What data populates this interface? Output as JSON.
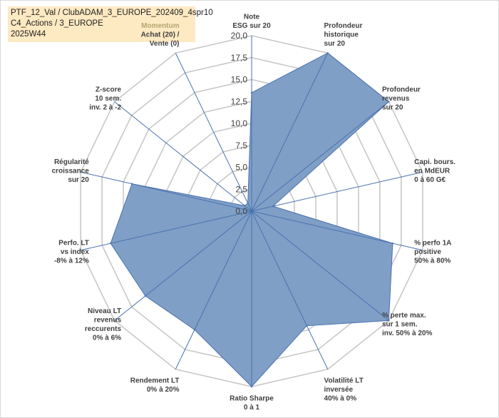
{
  "title_lines": [
    "PTF_12_Val / ClubADAM_3_EUROPE_202409_4spr10",
    "C4_Actions / 3_EUROPE",
    "2025W44"
  ],
  "chart_data": {
    "type": "radar",
    "rmin": 0,
    "rmax": 20,
    "ticks": [
      "0,0",
      "2,5",
      "5,0",
      "7,5",
      "10,0",
      "12,5",
      "15,0",
      "17,5",
      "20,0"
    ],
    "tick_values": [
      0,
      2.5,
      5,
      7.5,
      10,
      12.5,
      15,
      17.5,
      20
    ],
    "grid": true,
    "legend": "none",
    "axes": [
      {
        "label": [
          "Note",
          "ESG sur 20"
        ],
        "value": 13.5
      },
      {
        "label": [
          "Profondeur",
          "historique",
          "sur 20"
        ],
        "value": 20.0
      },
      {
        "label": [
          "Profondeur",
          "revenus",
          "sur 20"
        ],
        "value": 20.0
      },
      {
        "label": [
          "Capi. bours.",
          "en MdEUR",
          "0 à 60 G€"
        ],
        "value": 2.5
      },
      {
        "label": [
          "% perfo 1A",
          "positive",
          "50% à 80%"
        ],
        "value": 16.5
      },
      {
        "label": [
          "% perte max.",
          "sur 1 sem.",
          "inv. 50% à 20%"
        ],
        "value": 20.0
      },
      {
        "label": [
          "Volatilité LT",
          "inversée",
          "40% à 0%"
        ],
        "value": 14.5
      },
      {
        "label": [
          "Ratio Sharpe",
          "0 à 1"
        ],
        "value": 20.0
      },
      {
        "label": [
          "Rendement LT",
          "0% à 20%"
        ],
        "value": 15.0
      },
      {
        "label": [
          "Niveau LT",
          "revenus",
          "reccurents",
          "0% à 6%"
        ],
        "value": 15.5
      },
      {
        "label": [
          "Perfo. LT",
          "vs index",
          "-8% à 12%"
        ],
        "value": 16.5
      },
      {
        "label": [
          "Régularité",
          "croissance",
          "sur 20"
        ],
        "value": 14.0
      },
      {
        "label": [
          "Z-score",
          "10 sem.",
          "inv. 2 à -2"
        ],
        "value": 1.0
      },
      {
        "label": [
          "Momentum",
          "Achat (20) /",
          "Vente (0)"
        ],
        "value": 1.0
      }
    ],
    "colors": {
      "fill": "#7f9fc6",
      "stroke": "#4a72b0",
      "grid": "#c8c8c8",
      "spoke": "#4a72b0",
      "faded_label": "#b7a572"
    }
  }
}
